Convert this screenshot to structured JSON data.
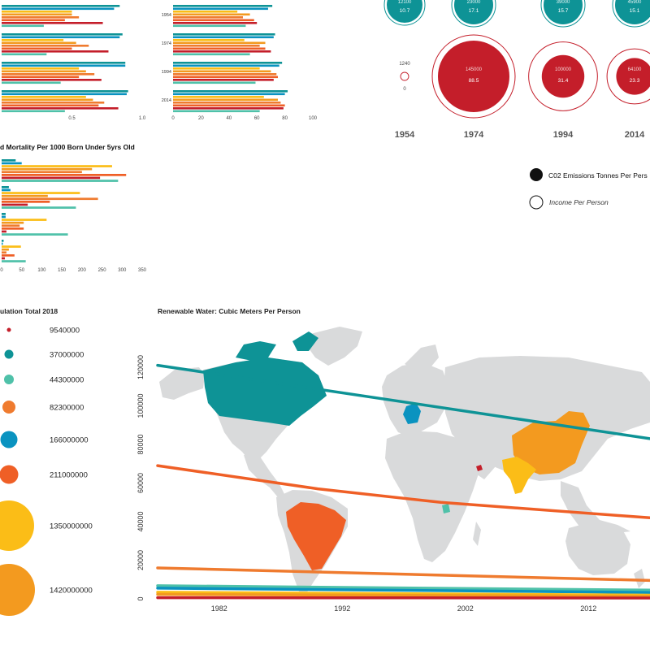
{
  "colors": {
    "teal": "#0e9396",
    "blue": "#0a93c0",
    "mint": "#4fc1a9",
    "yellow": "#fbbd17",
    "amber": "#f39a1f",
    "orange": "#ef7b2f",
    "red_orange": "#ef5f26",
    "red": "#c41e2a",
    "land": "#d9dadb"
  },
  "chart_data": [
    {
      "id": "panel1",
      "type": "bar",
      "orientation": "horizontal",
      "x_ticks": [
        "0.5",
        "1.0"
      ],
      "xlim": [
        0,
        1
      ],
      "series_colors": [
        "teal",
        "blue",
        "yellow",
        "amber",
        "orange",
        "red_orange",
        "red",
        "mint"
      ],
      "groups": [
        [
          0.84,
          0.8,
          0.5,
          0.5,
          0.55,
          0.45,
          0.72,
          0.3
        ],
        [
          0.86,
          0.84,
          0.44,
          0.53,
          0.62,
          0.5,
          0.76,
          0.32
        ],
        [
          0.88,
          0.88,
          0.55,
          0.6,
          0.66,
          0.55,
          0.71,
          0.42
        ],
        [
          0.9,
          0.89,
          0.6,
          0.65,
          0.73,
          0.69,
          0.83,
          0.45
        ]
      ]
    },
    {
      "id": "panel2",
      "type": "bar",
      "orientation": "horizontal",
      "categories": [
        "1954",
        "1974",
        "1994",
        "2014"
      ],
      "x_ticks": [
        "0",
        "20",
        "40",
        "60",
        "80",
        "100"
      ],
      "xlim": [
        0,
        100
      ],
      "series_colors": [
        "teal",
        "blue",
        "yellow",
        "amber",
        "orange",
        "red_orange",
        "red",
        "mint"
      ],
      "groups": [
        [
          71,
          68,
          46,
          55,
          50,
          58,
          60,
          52
        ],
        [
          73,
          72,
          51,
          66,
          62,
          66,
          70,
          55
        ],
        [
          78,
          76,
          62,
          70,
          74,
          75,
          72,
          59
        ],
        [
          82,
          80,
          65,
          75,
          77,
          80,
          79,
          62
        ]
      ]
    },
    {
      "id": "mortality",
      "type": "bar",
      "orientation": "horizontal",
      "title": "d Mortality Per 1000 Born Under 5yrs Old",
      "x_ticks": [
        "0",
        "50",
        "100",
        "150",
        "200",
        "250",
        "300",
        "350"
      ],
      "xlim": [
        0,
        350
      ],
      "series_colors": [
        "teal",
        "blue",
        "yellow",
        "amber",
        "orange",
        "red_orange",
        "red",
        "mint"
      ],
      "groups": [
        [
          35,
          50,
          275,
          225,
          200,
          310,
          245,
          290
        ],
        [
          18,
          22,
          195,
          115,
          240,
          120,
          65,
          185
        ],
        [
          10,
          10,
          112,
          55,
          45,
          55,
          12,
          165
        ],
        [
          5,
          3,
          48,
          18,
          12,
          32,
          8,
          60
        ]
      ]
    },
    {
      "id": "bubbles",
      "type": "scatter",
      "categories": [
        "1954",
        "1974",
        "1994",
        "2014"
      ],
      "legend": {
        "filled": "C02 Emissions Tonnes Per Pers",
        "outline": "Income Per Person"
      },
      "top_row": [
        {
          "year": "1954",
          "income": "12100",
          "co2": "10.7"
        },
        {
          "year": "1974",
          "income": "23000",
          "co2": "17.1"
        },
        {
          "year": "1994",
          "income": "39000",
          "co2": "15.7"
        },
        {
          "year": "2014",
          "income": "45900",
          "co2": "15.1"
        }
      ],
      "bottom_row": [
        {
          "year": "1954",
          "income": "1240",
          "co2": "0",
          "income_value": 1240,
          "co2_value": 0
        },
        {
          "year": "1974",
          "income": "145000",
          "co2": "88.5",
          "income_value": 145000,
          "co2_value": 88.5
        },
        {
          "year": "1994",
          "income": "100000",
          "co2": "31.4",
          "income_value": 100000,
          "co2_value": 31.4
        },
        {
          "year": "2014",
          "income": "64100",
          "co2": "23.3",
          "income_value": 64100,
          "co2_value": 23.3
        }
      ]
    },
    {
      "id": "population",
      "type": "scatter",
      "title": "ulation Total 2018",
      "items": [
        {
          "label": "9540000",
          "value": 9540000,
          "color": "red"
        },
        {
          "label": "37000000",
          "value": 37000000,
          "color": "teal"
        },
        {
          "label": "44300000",
          "value": 44300000,
          "color": "mint"
        },
        {
          "label": "82300000",
          "value": 82300000,
          "color": "orange"
        },
        {
          "label": "166000000",
          "value": 166000000,
          "color": "blue"
        },
        {
          "label": "211000000",
          "value": 211000000,
          "color": "red_orange"
        },
        {
          "label": "1350000000",
          "value": 1350000000,
          "color": "yellow"
        },
        {
          "label": "1420000000",
          "value": 1420000000,
          "color": "amber"
        }
      ]
    },
    {
      "id": "water",
      "type": "line",
      "title": "Renewable Water: Cubic Meters Per Person",
      "y_ticks": [
        "0",
        "20000",
        "40000",
        "60000",
        "80000",
        "100000",
        "120000"
      ],
      "ylim": [
        0,
        120000
      ],
      "x_ticks": [
        "1982",
        "1992",
        "2002",
        "2012"
      ],
      "xlim": [
        1977,
        2017
      ],
      "series": [
        {
          "color": "teal",
          "x": [
            1977,
            2017
          ],
          "y": [
            121000,
            83000
          ]
        },
        {
          "color": "red_orange",
          "x": [
            1977,
            1990,
            2000,
            2017
          ],
          "y": [
            69000,
            57000,
            50000,
            42000
          ]
        },
        {
          "color": "orange",
          "x": [
            1977,
            2017
          ],
          "y": [
            16000,
            9500
          ]
        },
        {
          "color": "mint",
          "x": [
            1977,
            2017
          ],
          "y": [
            6800,
            4500
          ]
        },
        {
          "color": "blue",
          "x": [
            1977,
            2017
          ],
          "y": [
            5500,
            3300
          ]
        },
        {
          "color": "yellow",
          "x": [
            1977,
            2017
          ],
          "y": [
            3400,
            1900
          ]
        },
        {
          "color": "amber",
          "x": [
            1977,
            2017
          ],
          "y": [
            2300,
            1300
          ]
        },
        {
          "color": "red",
          "x": [
            1977,
            2017
          ],
          "y": [
            600,
            400
          ]
        }
      ],
      "map": {
        "highlighted": [
          {
            "color": "teal"
          },
          {
            "color": "red_orange"
          },
          {
            "color": "blue"
          },
          {
            "color": "amber"
          },
          {
            "color": "yellow"
          },
          {
            "color": "red"
          },
          {
            "color": "mint"
          }
        ]
      }
    }
  ]
}
